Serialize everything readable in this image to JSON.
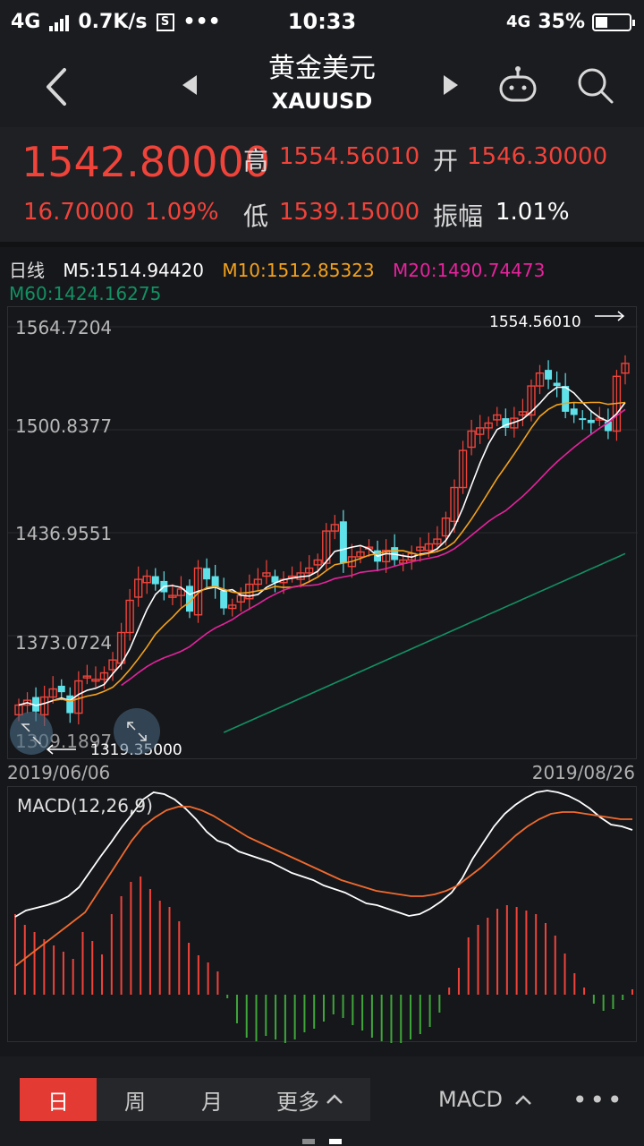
{
  "status": {
    "network": "4G",
    "speed": "0.7K/s",
    "time": "10:33",
    "network_right": "4G",
    "battery": "35%",
    "battery_level": 0.35
  },
  "header": {
    "title_cn": "黄金美元",
    "symbol": "XAUUSD"
  },
  "quote": {
    "price": "1542.80000",
    "change": "16.70000",
    "change_pct": "1.09%",
    "high_label": "高",
    "high": "1554.56010",
    "open_label": "开",
    "open": "1546.30000",
    "low_label": "低",
    "low": "1539.15000",
    "amplitude_label": "振幅",
    "amplitude": "1.01%"
  },
  "ma_legend": {
    "period": "日线",
    "m5": "M5:1514.94420",
    "m10": "M10:1512.85323",
    "m20": "M20:1490.74473",
    "m60": "M60:1424.16275"
  },
  "chart_data": {
    "type": "candlestick",
    "y_ticks": [
      "1564.7204",
      "1500.8377",
      "1436.9551",
      "1373.0724",
      "1309.1897"
    ],
    "ylim": [
      1309.1897,
      1564.7204
    ],
    "max_label": "1554.56010",
    "min_label": "1319.35000",
    "date_start": "2019/06/06",
    "date_end": "2019/08/26",
    "colors": {
      "up": "#f0433a",
      "down": "#5fe1ea",
      "m5": "#ffffff",
      "m10": "#f3a21c",
      "m20": "#e5239c",
      "m60": "#129162"
    }
  },
  "macd": {
    "label": "MACD(12,26,9)",
    "colors": {
      "dif": "#ffffff",
      "dea": "#f06a2e",
      "pos": "#f0433a",
      "neg": "#3fa63a"
    }
  },
  "toolbar": {
    "day": "日",
    "week": "周",
    "month": "月",
    "more": "更多",
    "indicator": "MACD"
  }
}
